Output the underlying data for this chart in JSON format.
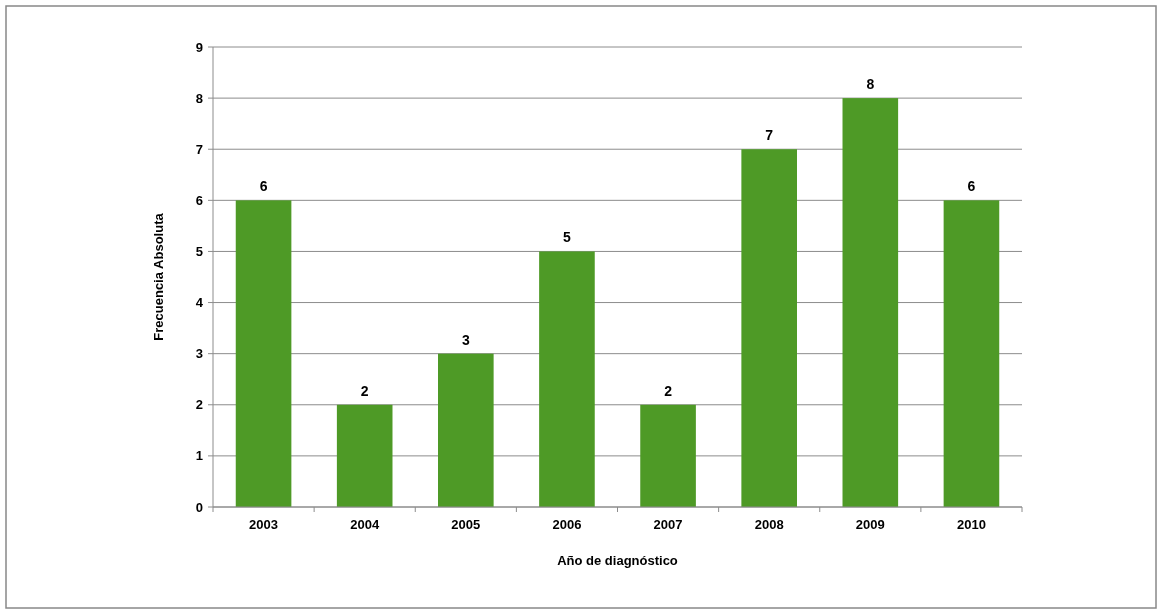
{
  "chart_data": {
    "type": "bar",
    "xlabel": "Año de diagnóstico",
    "ylabel": "Frecuencia Absoluta",
    "categories": [
      "2003",
      "2004",
      "2005",
      "2006",
      "2007",
      "2008",
      "2009",
      "2010"
    ],
    "values": [
      6,
      2,
      3,
      5,
      2,
      7,
      8,
      6
    ],
    "color": "#4e9a26",
    "ylim": [
      0,
      9
    ],
    "yticks": [
      0,
      1,
      2,
      3,
      4,
      5,
      6,
      7,
      8,
      9
    ],
    "grid": "y",
    "data_labels": true
  }
}
